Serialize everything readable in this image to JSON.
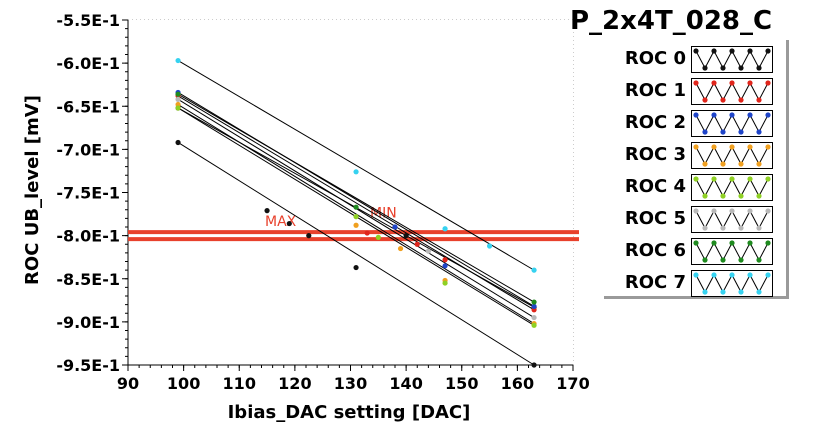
{
  "chart_data": {
    "type": "scatter",
    "title": "P_2x4T_028_C",
    "xlabel": "Ibias_DAC setting [DAC]",
    "ylabel": "ROC UB_level [mV]",
    "xlim": [
      90,
      170
    ],
    "ylim": [
      -0.95,
      -0.55
    ],
    "x_ticks": [
      "90",
      "100",
      "110",
      "120",
      "130",
      "140",
      "150",
      "160",
      "170"
    ],
    "y_ticks": [
      "-5.5E-1",
      "-6.0E-1",
      "-6.5E-1",
      "-7.0E-1",
      "-7.5E-1",
      "-8.0E-1",
      "-8.5E-1",
      "-9.0E-1",
      "-9.5E-1"
    ],
    "grid": true,
    "legend_position": "right",
    "hlines": [
      {
        "label": "MAX",
        "y": -0.796,
        "color": "#e8412c"
      },
      {
        "label": "MIN",
        "y": -0.804,
        "color": "#e8412c"
      }
    ],
    "series": [
      {
        "name": "ROC 0",
        "color": "#111111",
        "x": [
          99,
          163
        ],
        "y": [
          -0.652,
          -0.883
        ]
      },
      {
        "name": "ROC 0",
        "color": "#111111",
        "x": [
          99,
          163
        ],
        "y": [
          -0.692,
          -0.95
        ]
      },
      {
        "name": "ROC 1",
        "color": "#e0251b",
        "x": [
          99,
          163
        ],
        "y": [
          -0.638,
          -0.886
        ]
      },
      {
        "name": "ROC 2",
        "color": "#1e44c8",
        "x": [
          99,
          163
        ],
        "y": [
          -0.634,
          -0.882
        ]
      },
      {
        "name": "ROC 3",
        "color": "#f0a020",
        "x": [
          99,
          163
        ],
        "y": [
          -0.648,
          -0.902
        ]
      },
      {
        "name": "ROC 4",
        "color": "#8fd024",
        "x": [
          99,
          163
        ],
        "y": [
          -0.652,
          -0.904
        ]
      },
      {
        "name": "ROC 5",
        "color": "#b8b8b8",
        "x": [
          99,
          163
        ],
        "y": [
          -0.642,
          -0.895
        ]
      },
      {
        "name": "ROC 6",
        "color": "#1f8a1f",
        "x": [
          99,
          163
        ],
        "y": [
          -0.636,
          -0.877
        ]
      },
      {
        "name": "ROC 7",
        "color": "#36d2f0",
        "x": [
          99,
          163
        ],
        "y": [
          -0.597,
          -0.84
        ]
      }
    ],
    "points": [
      {
        "x": 115,
        "y": -0.771,
        "color": "#111111"
      },
      {
        "x": 119,
        "y": -0.786,
        "color": "#111111"
      },
      {
        "x": 122.5,
        "y": -0.8,
        "color": "#111111"
      },
      {
        "x": 131,
        "y": -0.837,
        "color": "#111111"
      },
      {
        "x": 131,
        "y": -0.726,
        "color": "#36d2f0"
      },
      {
        "x": 131,
        "y": -0.767,
        "color": "#1f8a1f"
      },
      {
        "x": 131,
        "y": -0.788,
        "color": "#f0a020"
      },
      {
        "x": 131,
        "y": -0.778,
        "color": "#8fd024"
      },
      {
        "x": 133,
        "y": -0.797,
        "color": "#e0251b"
      },
      {
        "x": 135,
        "y": -0.802,
        "color": "#8fd024"
      },
      {
        "x": 138,
        "y": -0.79,
        "color": "#1e44c8"
      },
      {
        "x": 139,
        "y": -0.815,
        "color": "#f0a020"
      },
      {
        "x": 140,
        "y": -0.8,
        "color": "#111111"
      },
      {
        "x": 142,
        "y": -0.81,
        "color": "#e0251b"
      },
      {
        "x": 144,
        "y": -0.818,
        "color": "#b8b8b8"
      },
      {
        "x": 147,
        "y": -0.792,
        "color": "#36d2f0"
      },
      {
        "x": 147,
        "y": -0.828,
        "color": "#e0251b"
      },
      {
        "x": 147,
        "y": -0.835,
        "color": "#1e44c8"
      },
      {
        "x": 147,
        "y": -0.852,
        "color": "#f0a020"
      },
      {
        "x": 147,
        "y": -0.855,
        "color": "#8fd024"
      },
      {
        "x": 155,
        "y": -0.812,
        "color": "#36d2f0"
      }
    ],
    "legend": [
      {
        "label": "ROC 0",
        "color": "#111111"
      },
      {
        "label": "ROC 1",
        "color": "#e0251b"
      },
      {
        "label": "ROC 2",
        "color": "#1e44c8"
      },
      {
        "label": "ROC 3",
        "color": "#f0a020"
      },
      {
        "label": "ROC 4",
        "color": "#8fd024"
      },
      {
        "label": "ROC 5",
        "color": "#b8b8b8"
      },
      {
        "label": "ROC 6",
        "color": "#1f8a1f"
      },
      {
        "label": "ROC 7",
        "color": "#36d2f0"
      }
    ]
  }
}
